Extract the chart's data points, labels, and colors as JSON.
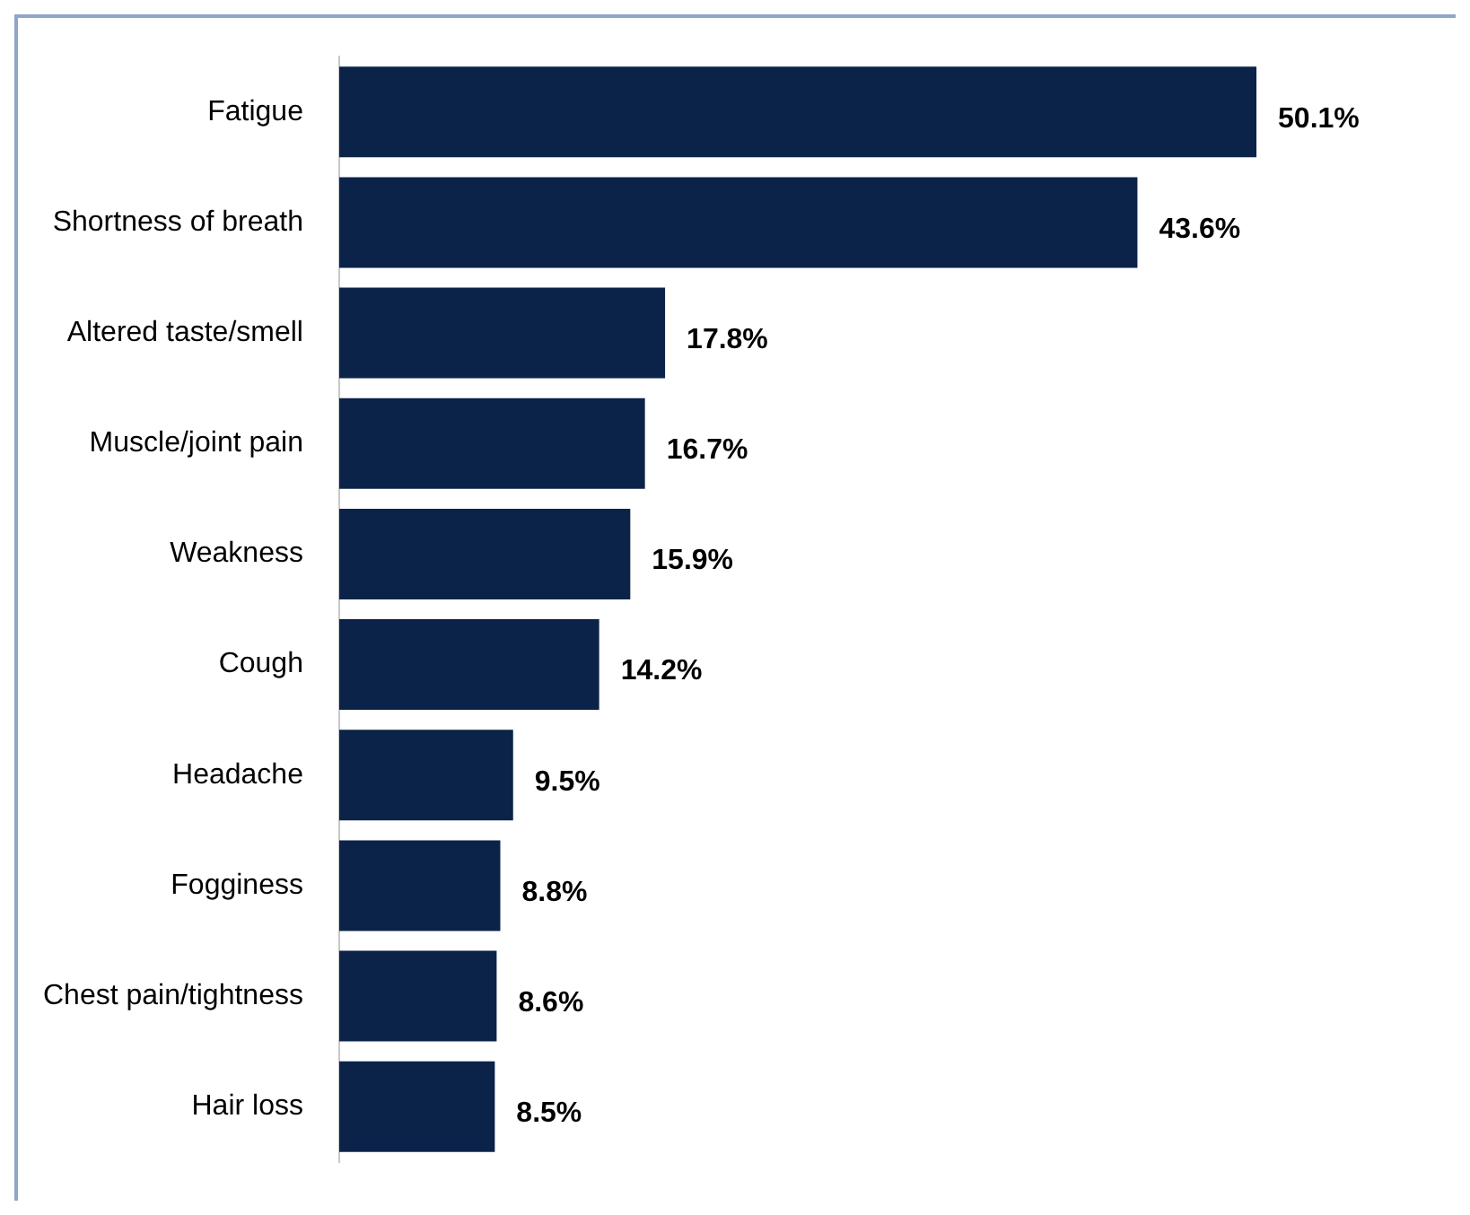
{
  "chart_data": {
    "type": "bar",
    "orientation": "horizontal",
    "tick_labels": "y",
    "categories": [
      "Fatigue",
      "Shortness of breath",
      "Altered taste/smell",
      "Muscle/joint pain",
      "Weakness",
      "Cough",
      "Headache",
      "Fogginess",
      "Chest pain/tightness",
      "Hair loss"
    ],
    "values": [
      50.1,
      43.6,
      17.8,
      16.7,
      15.9,
      14.2,
      9.5,
      8.8,
      8.6,
      8.5
    ],
    "value_labels": [
      "50.1%",
      "43.6%",
      "17.8%",
      "16.7%",
      "15.9%",
      "14.2%",
      "9.5%",
      "8.8%",
      "8.6%",
      "8.5%"
    ],
    "color": "#0b2349",
    "legend": false
  }
}
